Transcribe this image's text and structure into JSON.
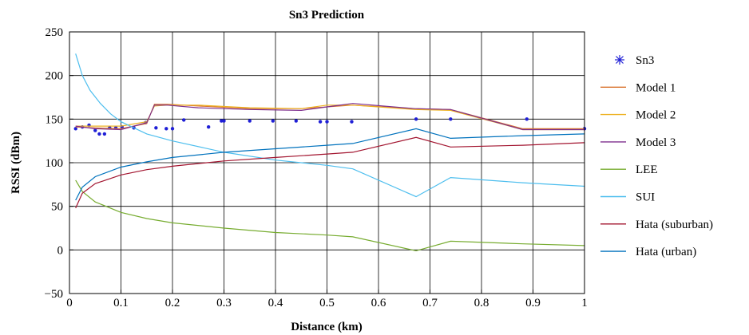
{
  "chart_data": {
    "type": "line",
    "title": "Sn3 Prediction",
    "xlabel": "Distance (km)",
    "ylabel": "RSSI (dBm)",
    "xlim": [
      0,
      1
    ],
    "ylim": [
      -50,
      250
    ],
    "xticks": [
      0,
      0.1,
      0.2,
      0.3,
      0.4,
      0.5,
      0.6,
      0.7,
      0.8,
      0.9,
      1
    ],
    "xtick_labels": [
      "0",
      "0.1",
      "0.2",
      "0.3",
      "0.4",
      "0.5",
      "0.6",
      "0.7",
      "0.8",
      "0.9",
      "1"
    ],
    "yticks": [
      -50,
      0,
      50,
      100,
      150,
      200,
      250
    ],
    "ytick_labels": [
      "−50",
      "0",
      "50",
      "100",
      "150",
      "200",
      "250"
    ],
    "grid": true,
    "legend_position": "right",
    "series": [
      {
        "name": "Sn3",
        "kind": "marker",
        "color": "#1f1fd6",
        "x": [
          0.012,
          0.025,
          0.038,
          0.05,
          0.058,
          0.068,
          0.078,
          0.09,
          0.102,
          0.125,
          0.148,
          0.168,
          0.188,
          0.2,
          0.222,
          0.27,
          0.295,
          0.3,
          0.35,
          0.395,
          0.44,
          0.487,
          0.5,
          0.548,
          0.673,
          0.74,
          0.888,
          1.0
        ],
        "y": [
          139,
          141,
          143,
          137,
          133,
          133,
          140,
          140,
          141,
          140,
          146,
          140,
          139,
          139,
          149,
          141,
          148,
          148,
          148,
          148,
          148,
          147,
          147,
          147,
          150,
          150,
          150,
          139
        ]
      },
      {
        "name": "Model 1",
        "kind": "line",
        "color": "#d9732e",
        "x": [
          0.012,
          0.05,
          0.1,
          0.15,
          0.165,
          0.19,
          0.25,
          0.35,
          0.45,
          0.55,
          0.67,
          0.74,
          0.88,
          1.0
        ],
        "y": [
          141,
          140,
          139,
          145,
          167,
          167,
          165,
          162,
          162,
          166,
          162,
          161,
          139,
          139
        ]
      },
      {
        "name": "Model 2",
        "kind": "line",
        "color": "#edb120",
        "x": [
          0.012,
          0.05,
          0.1,
          0.15,
          0.165,
          0.19,
          0.25,
          0.35,
          0.45,
          0.5,
          0.55,
          0.67,
          0.74,
          0.88,
          1.0
        ],
        "y": [
          142,
          142,
          142,
          147,
          165,
          166,
          166,
          163,
          162,
          166,
          166,
          161,
          160,
          138,
          138
        ]
      },
      {
        "name": "Model 3",
        "kind": "line",
        "color": "#7e2f8e",
        "x": [
          0.012,
          0.05,
          0.1,
          0.15,
          0.165,
          0.19,
          0.25,
          0.35,
          0.45,
          0.5,
          0.55,
          0.67,
          0.74,
          0.88,
          1.0
        ],
        "y": [
          142,
          139,
          138,
          146,
          166,
          166,
          163,
          161,
          160,
          164,
          168,
          162,
          161,
          138,
          138
        ]
      },
      {
        "name": "LEE",
        "kind": "line",
        "color": "#77ac30",
        "x": [
          0.012,
          0.025,
          0.05,
          0.1,
          0.15,
          0.2,
          0.3,
          0.4,
          0.5,
          0.55,
          0.673,
          0.74,
          0.88,
          1.0
        ],
        "y": [
          80,
          67,
          55,
          43,
          36,
          31,
          25,
          20,
          17,
          15,
          -1,
          10,
          7,
          5
        ]
      },
      {
        "name": "SUI",
        "kind": "line",
        "color": "#4dbeee",
        "x": [
          0.012,
          0.025,
          0.04,
          0.06,
          0.08,
          0.1,
          0.15,
          0.2,
          0.3,
          0.4,
          0.5,
          0.55,
          0.673,
          0.74,
          0.88,
          1.0
        ],
        "y": [
          225,
          200,
          183,
          168,
          156,
          147,
          133,
          125,
          112,
          103,
          97,
          93,
          61,
          83,
          77,
          73
        ]
      },
      {
        "name": "Hata (suburban)",
        "kind": "line",
        "color": "#a2142f",
        "x": [
          0.012,
          0.025,
          0.05,
          0.1,
          0.15,
          0.2,
          0.3,
          0.4,
          0.5,
          0.55,
          0.673,
          0.74,
          0.88,
          1.0
        ],
        "y": [
          48,
          65,
          76,
          86,
          92,
          96,
          102,
          106,
          110,
          112,
          129,
          118,
          120,
          123
        ]
      },
      {
        "name": "Hata (urban)",
        "kind": "line",
        "color": "#0072bd",
        "x": [
          0.012,
          0.025,
          0.05,
          0.1,
          0.15,
          0.2,
          0.3,
          0.4,
          0.5,
          0.55,
          0.673,
          0.74,
          0.88,
          1.0
        ],
        "y": [
          57,
          72,
          84,
          95,
          101,
          106,
          112,
          116,
          120,
          122,
          139,
          128,
          131,
          133
        ]
      }
    ]
  }
}
